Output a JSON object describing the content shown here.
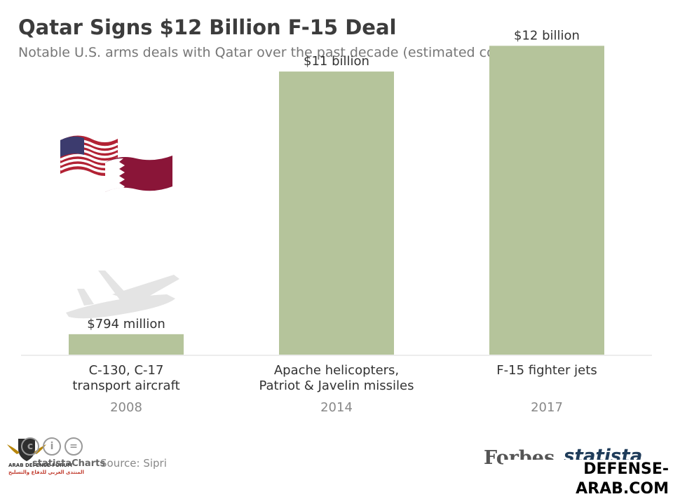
{
  "title": "Qatar Signs $12 Billion F-15 Deal",
  "subtitle": "Notable U.S. arms deals with Qatar over the past decade (estimated cost)",
  "chart_data": {
    "type": "bar",
    "categories": [
      "C-130, C-17 transport aircraft",
      "Apache helicopters, Patriot & Javelin missiles",
      "F-15 fighter jets"
    ],
    "category_lines": [
      [
        "C-130, C-17",
        "transport aircraft"
      ],
      [
        "Apache helicopters,",
        "Patriot & Javelin missiles"
      ],
      [
        "F-15 fighter jets"
      ]
    ],
    "years": [
      "2008",
      "2014",
      "2017"
    ],
    "values": [
      0.794,
      11,
      12
    ],
    "unit": "billion USD",
    "data_labels": [
      "$794 million",
      "$11 billion",
      "$12 billion"
    ],
    "ylim": [
      0,
      12.5
    ],
    "grid": false,
    "bar_color": "#b5c49b"
  },
  "footer": {
    "brand": "statistaCharts",
    "source": "Source: Sipri",
    "forbes": "Forbes",
    "statista": "statista",
    "watermark": "DEFENSE-ARAB.COM",
    "forum_en": "ARAB DEFENSE FORUM",
    "forum_ar": "المنتدى العربي للدفاع والتسليح"
  },
  "icons": [
    "us-flag-icon",
    "qatar-flag-icon",
    "transport-aircraft-icon",
    "helicopter-icon",
    "fighter-jet-icon",
    "cc-icon",
    "info-icon",
    "equals-icon"
  ]
}
